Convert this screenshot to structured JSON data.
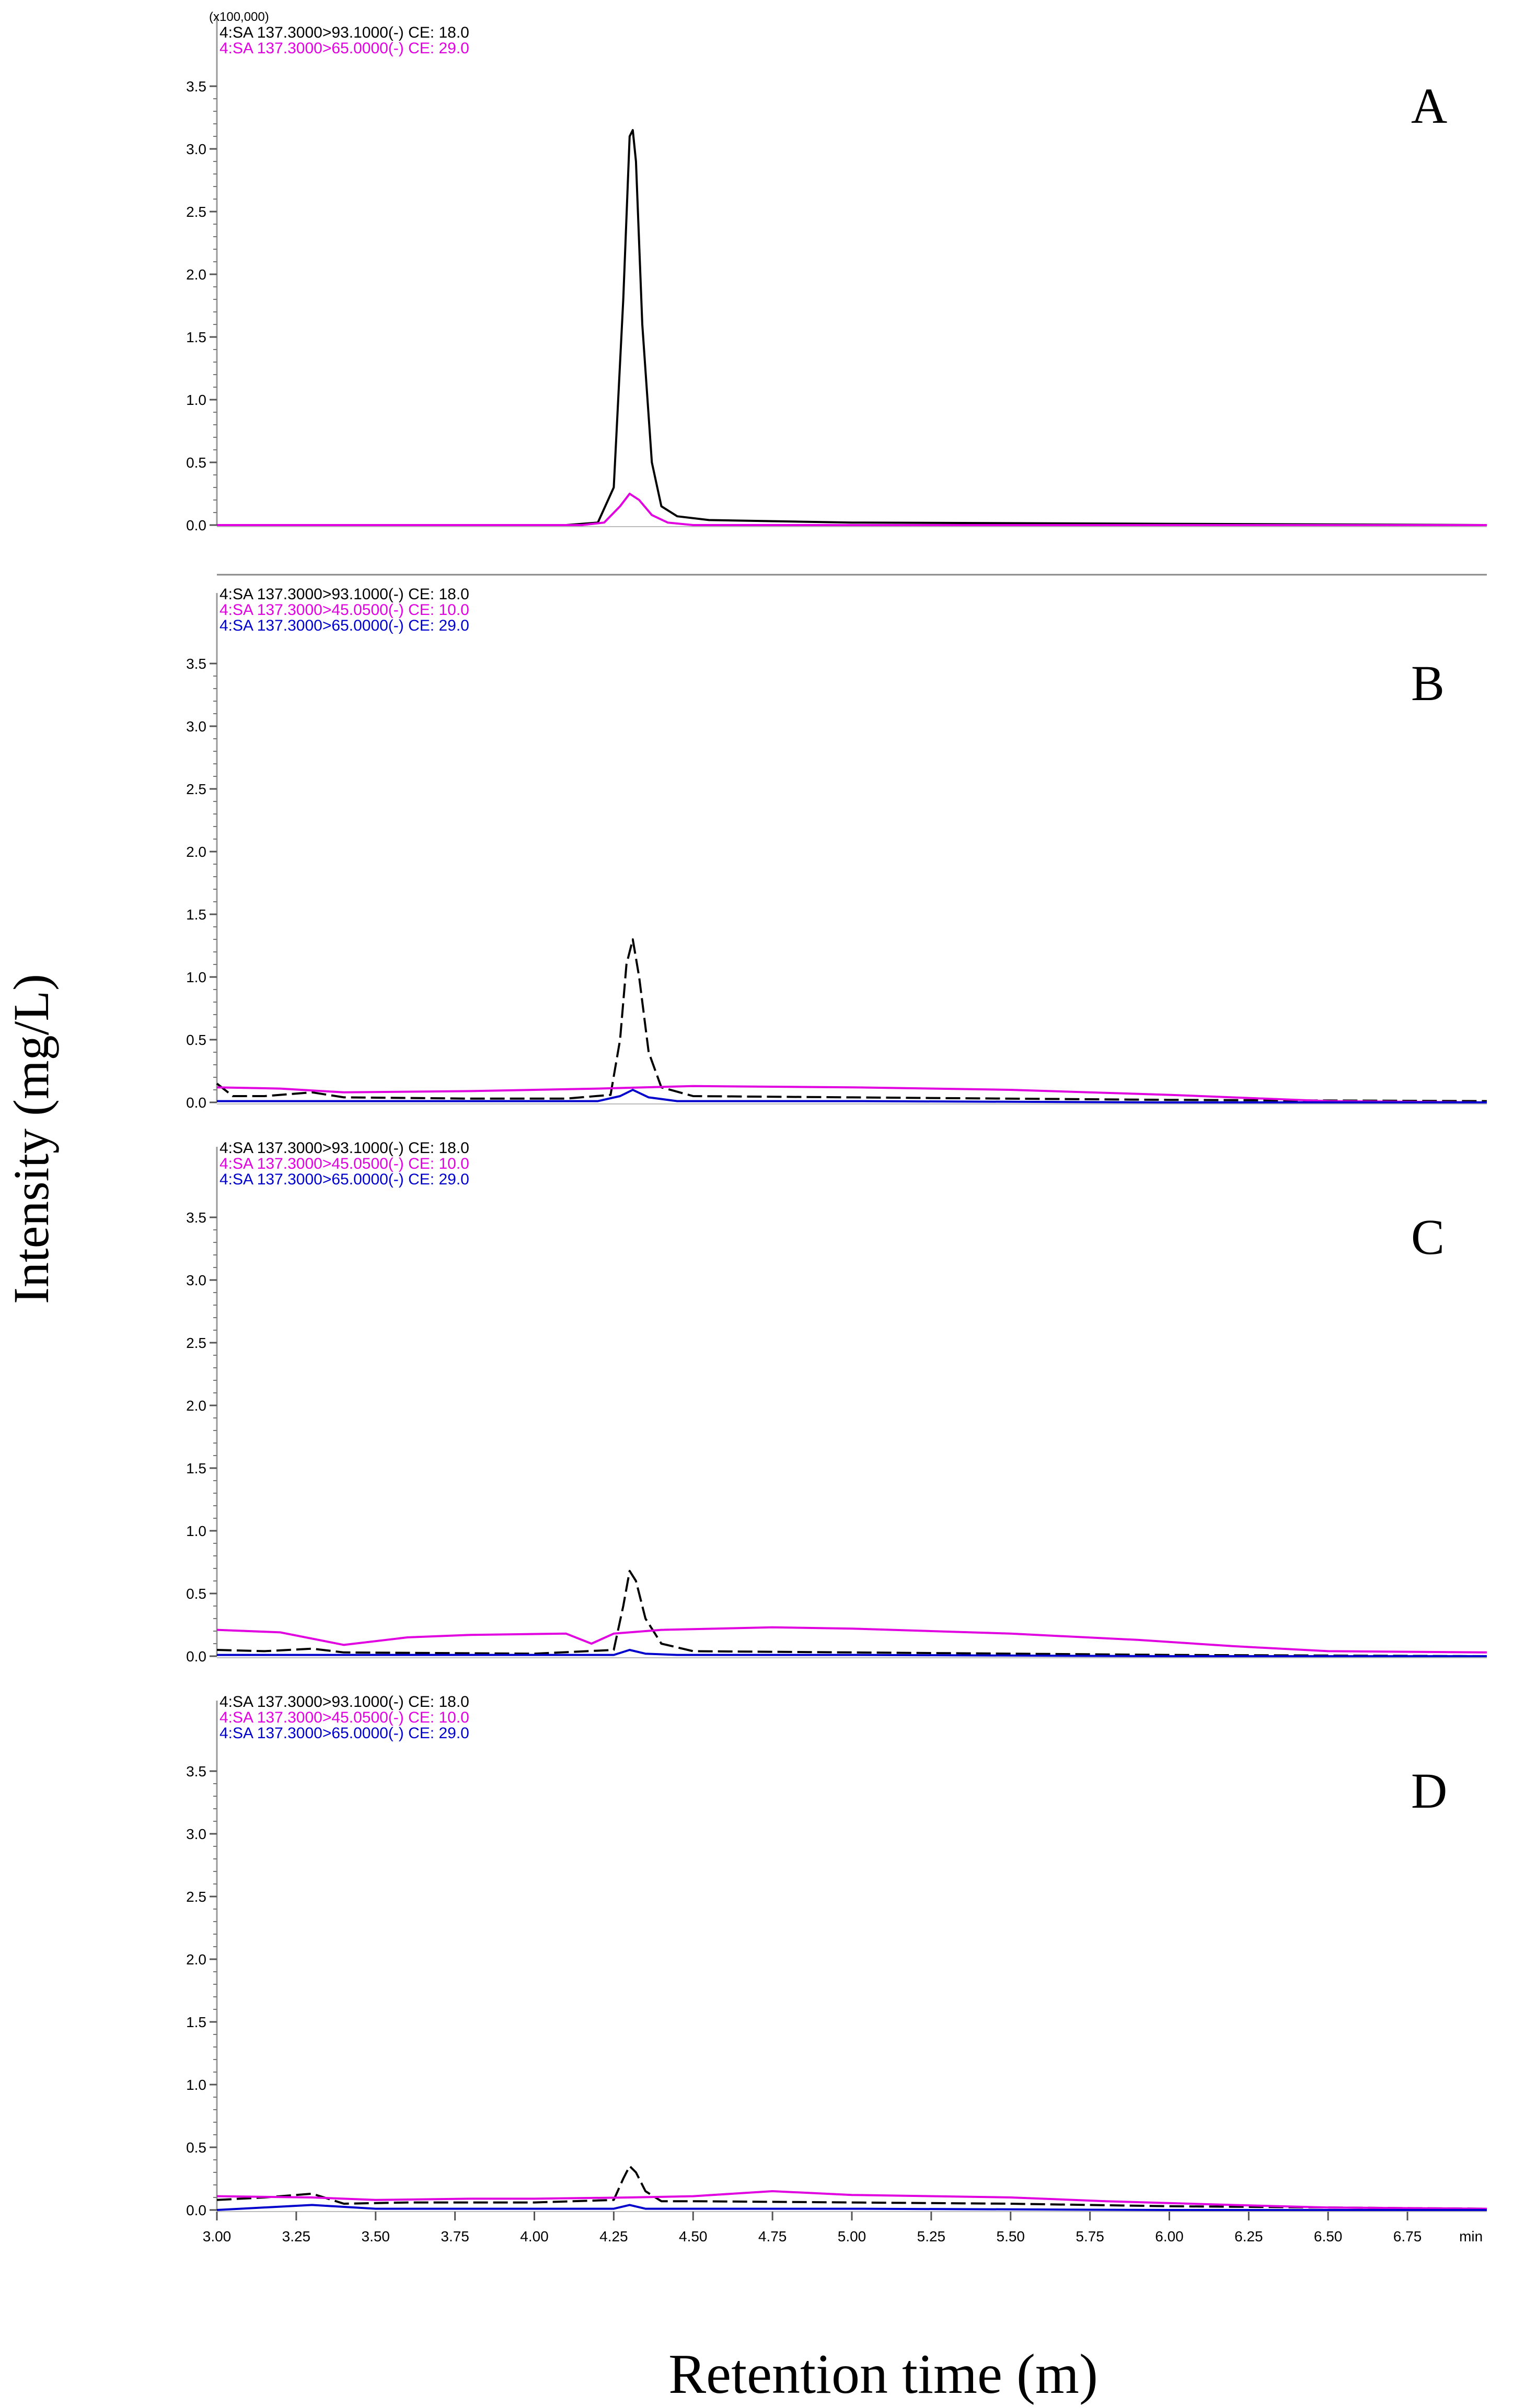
{
  "y_axis_title": "Intensity (mg/L)",
  "x_axis_title": "Retention time (m)",
  "x_unit_label": "min",
  "y_multiplier_label": "(x100,000)",
  "colors": {
    "trace_93": "#000000",
    "trace_45": "#e000e0",
    "trace_65_two_trace": "#e000e0",
    "trace_65_three_trace": "#0000cc"
  },
  "chart_data": {
    "type": "line",
    "xlim": [
      3.0,
      7.0
    ],
    "ylim": [
      0.0,
      3.5
    ],
    "x_ticks": [
      3.0,
      3.25,
      3.5,
      3.75,
      4.0,
      4.25,
      4.5,
      4.75,
      5.0,
      5.25,
      5.5,
      5.75,
      6.0,
      6.25,
      6.5,
      6.75
    ],
    "x_tick_labels": [
      "3.00",
      "3.25",
      "3.50",
      "3.75",
      "4.00",
      "4.25",
      "4.50",
      "4.75",
      "5.00",
      "5.25",
      "5.50",
      "5.75",
      "6.00",
      "6.25",
      "6.50",
      "6.75"
    ],
    "y_ticks": [
      0.0,
      0.5,
      1.0,
      1.5,
      2.0,
      2.5,
      3.0,
      3.5
    ],
    "y_tick_labels": [
      "0.0",
      "0.5",
      "1.0",
      "1.5",
      "2.0",
      "2.5",
      "3.0",
      "3.5"
    ],
    "panels": [
      {
        "label": "A",
        "series": [
          {
            "name": "4:SA 137.3000>93.1000(-) CE: 18.0",
            "color": "#000000",
            "x": [
              3.0,
              4.1,
              4.2,
              4.25,
              4.28,
              4.3,
              4.31,
              4.32,
              4.34,
              4.37,
              4.4,
              4.45,
              4.55,
              5.0,
              6.0,
              7.0
            ],
            "y": [
              0.0,
              0.0,
              0.02,
              0.3,
              1.8,
              3.1,
              3.15,
              2.9,
              1.6,
              0.5,
              0.15,
              0.07,
              0.04,
              0.02,
              0.01,
              0.0
            ]
          },
          {
            "name": "4:SA 137.3000>65.0000(-) CE: 29.0",
            "color": "#e000e0",
            "x": [
              3.0,
              4.15,
              4.22,
              4.27,
              4.3,
              4.33,
              4.37,
              4.42,
              4.5,
              5.5,
              7.0
            ],
            "y": [
              0.0,
              0.0,
              0.02,
              0.15,
              0.25,
              0.2,
              0.08,
              0.02,
              0.0,
              0.0,
              0.0
            ]
          }
        ]
      },
      {
        "label": "B",
        "series": [
          {
            "name": "4:SA 137.3000>93.1000(-) CE: 18.0",
            "color": "#000000",
            "x": [
              3.0,
              3.05,
              3.15,
              3.3,
              3.4,
              3.8,
              4.1,
              4.24,
              4.27,
              4.29,
              4.31,
              4.33,
              4.36,
              4.4,
              4.5,
              5.0,
              6.0,
              7.0
            ],
            "y": [
              0.15,
              0.05,
              0.05,
              0.08,
              0.04,
              0.03,
              0.03,
              0.06,
              0.5,
              1.1,
              1.3,
              1.0,
              0.4,
              0.12,
              0.05,
              0.04,
              0.02,
              0.01
            ],
            "dash": true
          },
          {
            "name": "4:SA 137.3000>45.0500(-) CE: 10.0",
            "color": "#e000e0",
            "x": [
              3.0,
              3.2,
              3.4,
              3.8,
              4.0,
              4.2,
              4.5,
              5.0,
              5.5,
              6.0,
              6.5,
              7.0
            ],
            "y": [
              0.12,
              0.11,
              0.08,
              0.09,
              0.1,
              0.11,
              0.13,
              0.12,
              0.1,
              0.06,
              0.01,
              0.0
            ]
          },
          {
            "name": "4:SA 137.3000>65.0000(-) CE: 29.0",
            "color": "#0000cc",
            "x": [
              3.0,
              3.5,
              4.2,
              4.27,
              4.31,
              4.36,
              4.45,
              5.0,
              6.0,
              7.0
            ],
            "y": [
              0.01,
              0.01,
              0.01,
              0.05,
              0.1,
              0.04,
              0.01,
              0.01,
              0.0,
              0.0
            ]
          }
        ]
      },
      {
        "label": "C",
        "series": [
          {
            "name": "4:SA 137.3000>93.1000(-) CE: 18.0",
            "color": "#000000",
            "x": [
              3.0,
              3.15,
              3.3,
              3.4,
              4.0,
              4.25,
              4.28,
              4.3,
              4.32,
              4.35,
              4.4,
              4.5,
              5.0,
              6.0,
              7.0
            ],
            "y": [
              0.05,
              0.04,
              0.06,
              0.03,
              0.02,
              0.05,
              0.4,
              0.68,
              0.6,
              0.3,
              0.1,
              0.04,
              0.03,
              0.01,
              0.0
            ],
            "dash": true
          },
          {
            "name": "4:SA 137.3000>45.0500(-) CE: 10.0",
            "color": "#e000e0",
            "x": [
              3.0,
              3.2,
              3.4,
              3.6,
              3.8,
              4.1,
              4.18,
              4.25,
              4.4,
              4.75,
              5.0,
              5.5,
              5.9,
              6.2,
              6.5,
              7.0
            ],
            "y": [
              0.21,
              0.19,
              0.09,
              0.15,
              0.17,
              0.18,
              0.1,
              0.18,
              0.21,
              0.23,
              0.22,
              0.18,
              0.13,
              0.08,
              0.04,
              0.03
            ]
          },
          {
            "name": "4:SA 137.3000>65.0000(-) CE: 29.0",
            "color": "#0000cc",
            "x": [
              3.0,
              3.5,
              4.25,
              4.3,
              4.35,
              4.45,
              5.0,
              6.0,
              7.0
            ],
            "y": [
              0.01,
              0.01,
              0.01,
              0.05,
              0.02,
              0.01,
              0.01,
              0.0,
              0.0
            ]
          }
        ]
      },
      {
        "label": "D",
        "series": [
          {
            "name": "4:SA 137.3000>93.1000(-) CE: 18.0",
            "color": "#000000",
            "x": [
              3.0,
              3.15,
              3.3,
              3.4,
              3.6,
              4.0,
              4.25,
              4.28,
              4.3,
              4.32,
              4.35,
              4.4,
              4.5,
              5.0,
              5.5,
              6.0,
              6.5,
              7.0
            ],
            "y": [
              0.08,
              0.1,
              0.13,
              0.05,
              0.06,
              0.06,
              0.08,
              0.25,
              0.35,
              0.3,
              0.15,
              0.07,
              0.07,
              0.06,
              0.05,
              0.03,
              0.02,
              0.01
            ],
            "dash": true
          },
          {
            "name": "4:SA 137.3000>45.0500(-) CE: 10.0",
            "color": "#e000e0",
            "x": [
              3.0,
              3.3,
              3.5,
              3.8,
              4.0,
              4.3,
              4.5,
              4.75,
              5.0,
              5.5,
              5.8,
              6.2,
              6.5,
              7.0
            ],
            "y": [
              0.11,
              0.1,
              0.08,
              0.09,
              0.09,
              0.1,
              0.11,
              0.15,
              0.12,
              0.1,
              0.07,
              0.04,
              0.02,
              0.01
            ]
          },
          {
            "name": "4:SA 137.3000>65.0000(-) CE: 29.0",
            "color": "#0000cc",
            "x": [
              3.0,
              3.3,
              3.5,
              4.25,
              4.3,
              4.35,
              4.5,
              5.0,
              6.0,
              7.0
            ],
            "y": [
              0.0,
              0.04,
              0.01,
              0.01,
              0.04,
              0.01,
              0.01,
              0.01,
              0.0,
              0.0
            ]
          }
        ]
      }
    ]
  }
}
